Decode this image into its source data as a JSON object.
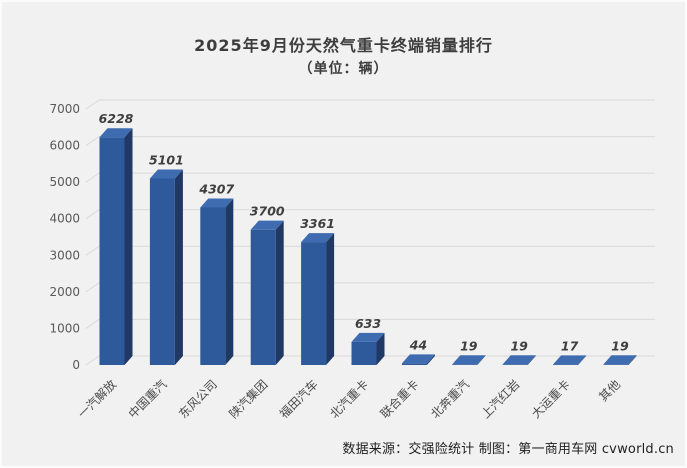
{
  "title": "2025年9月份天然气重卡终端销量排行",
  "subtitle": "（单位：辆）",
  "source_note": "数据来源：交强险统计 制图：第一商用车网 cvworld.cn",
  "colors": {
    "background": "#f1f1f1",
    "bar_front": "#2e5a9c",
    "bar_side": "#1f3864",
    "bar_top": "#3f6cb0",
    "gridline": "#d9d9d9",
    "title_text": "#3d3d3d",
    "axis_text": "#595959",
    "value_text": "#3f3f3f"
  },
  "chart_data": {
    "type": "bar",
    "style": "3d-column",
    "title": "2025年9月份天然气重卡终端销量排行",
    "subtitle": "（单位：辆）",
    "categories": [
      "一汽解放",
      "中国重汽",
      "东风公司",
      "陕汽集团",
      "福田汽车",
      "北汽重卡",
      "联合重卡",
      "北奔重汽",
      "上汽红岩",
      "大运重卡",
      "其他"
    ],
    "values": [
      6228,
      5101,
      4307,
      3700,
      3361,
      633,
      44,
      19,
      19,
      17,
      19
    ],
    "xlabel": "",
    "ylabel": "",
    "ylim": [
      0,
      7000
    ],
    "ytick_step": 1000,
    "yticks": [
      0,
      1000,
      2000,
      3000,
      4000,
      5000,
      6000,
      7000
    ],
    "grid": true,
    "legend": false,
    "data_labels": true,
    "category_label_rotation_deg": 45
  }
}
